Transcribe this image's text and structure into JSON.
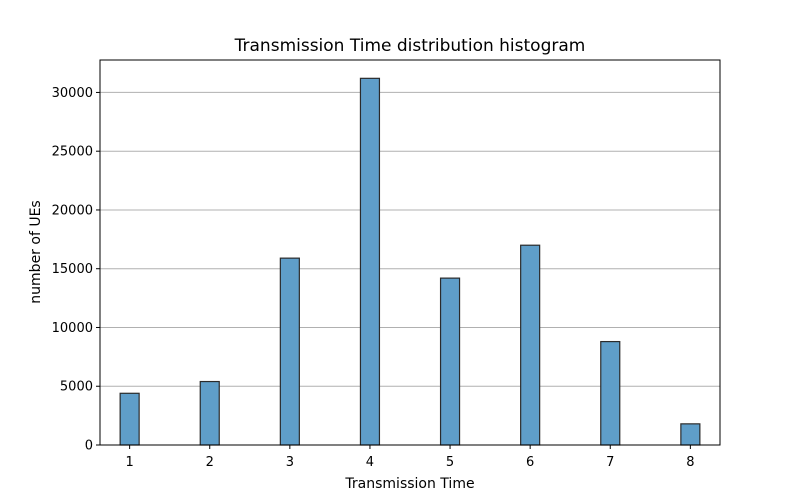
{
  "chart_data": {
    "type": "bar",
    "title": "Transmission Time distribution histogram",
    "xlabel": "Transmission Time",
    "ylabel": "number of UEs",
    "categories": [
      "1",
      "2",
      "3",
      "4",
      "5",
      "6",
      "7",
      "8"
    ],
    "x": [
      1,
      2,
      3,
      4,
      5,
      6,
      7,
      8
    ],
    "values": [
      4400,
      5400,
      15900,
      31200,
      14200,
      17000,
      8800,
      1800
    ],
    "xlim": [
      0.63,
      8.37
    ],
    "ylim": [
      0,
      32760
    ],
    "yticks": [
      0,
      5000,
      10000,
      15000,
      20000,
      25000,
      30000
    ],
    "ytick_labels": [
      "0",
      "5000",
      "10000",
      "15000",
      "20000",
      "25000",
      "30000"
    ],
    "xticks": [
      1,
      2,
      3,
      4,
      5,
      6,
      7,
      8
    ],
    "xtick_labels": [
      "1",
      "2",
      "3",
      "4",
      "5",
      "6",
      "7",
      "8"
    ],
    "grid": "y",
    "colors": {
      "bar_fill": "#5f9ec9",
      "bar_edge": "#2b2b2b"
    }
  }
}
